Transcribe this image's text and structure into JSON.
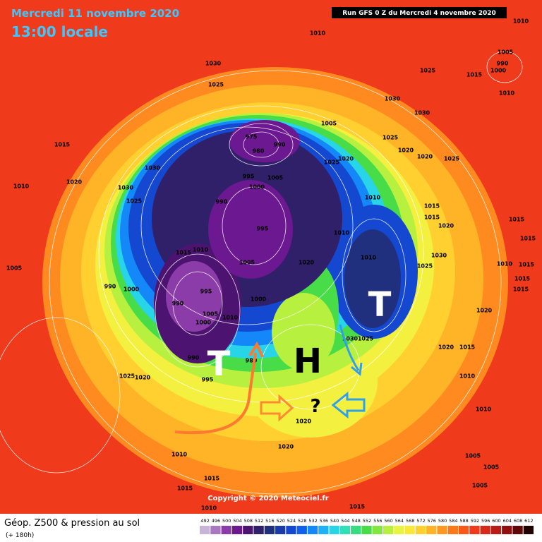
{
  "header": {
    "date": "Mercredi 11 novembre 2020",
    "time": "13:00 locale",
    "run": "Run GFS 0 Z du Mercredi 4 novembre 2020"
  },
  "map": {
    "annotations": {
      "low_west": "T",
      "low_east": "T",
      "high": "H",
      "question": "?"
    },
    "pressure_labels": [
      1010,
      1010,
      1030,
      1025,
      1025,
      1005,
      990,
      1000,
      1015,
      1010,
      1030,
      1030,
      1005,
      975,
      980,
      990,
      1015,
      1025,
      1020,
      1025,
      1020,
      1020,
      1025,
      1030,
      995,
      1020,
      1030,
      1000,
      1005,
      1010,
      1025,
      990,
      1010,
      1015,
      1015,
      1020,
      1015,
      995,
      1010,
      1010,
      1015,
      1010,
      1005,
      1020,
      1030,
      1025,
      1010,
      1015,
      1015,
      1015,
      1015,
      1005,
      990,
      1000,
      995,
      990,
      1000,
      1005,
      1010,
      1000,
      1020,
      1030,
      1025,
      1020,
      1015,
      990,
      980,
      995,
      1025,
      1020,
      1010,
      1020,
      1010,
      1010,
      1020,
      1005,
      1005,
      1015,
      1005,
      1015,
      1010,
      1015
    ],
    "copyright": "Copyright © 2020 Meteociel.fr"
  },
  "legend": {
    "title": "Géop. Z500 & pression au sol",
    "subtitle": "(+ 180h)",
    "scale": [
      492,
      496,
      500,
      504,
      508,
      512,
      516,
      520,
      524,
      528,
      532,
      536,
      540,
      544,
      548,
      552,
      556,
      560,
      564,
      568,
      572,
      576,
      580,
      584,
      588,
      592,
      596,
      600,
      604,
      608,
      612
    ],
    "colors": [
      "#c8b4d8",
      "#a878c0",
      "#8c3ca8",
      "#6c1890",
      "#4c1470",
      "#30206a",
      "#20307e",
      "#1a3aa8",
      "#1448d0",
      "#1060f0",
      "#1488f8",
      "#20b0f8",
      "#28d4e8",
      "#30e0b8",
      "#38dc80",
      "#48dc48",
      "#80e640",
      "#b8f040",
      "#e8f440",
      "#f8e838",
      "#ffd030",
      "#ffb428",
      "#ff9820",
      "#ff7818",
      "#f85818",
      "#f03a1c",
      "#d82818",
      "#b81c14",
      "#901010",
      "#600808",
      "#200000"
    ]
  }
}
